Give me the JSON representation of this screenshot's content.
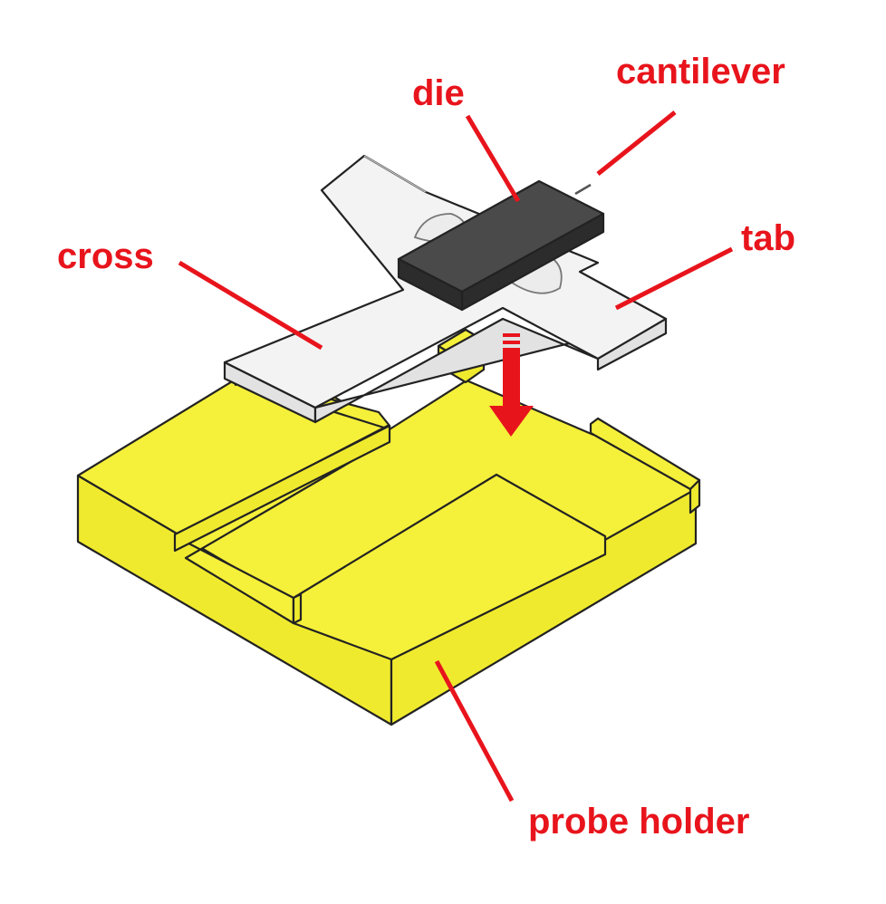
{
  "labels": {
    "cantilever": "cantilever",
    "die": "die",
    "tab": "tab",
    "cross": "cross",
    "probe_holder": "probe holder"
  },
  "colors": {
    "annotation": "#e8141c",
    "holder_top": "#f5f03a",
    "holder_side": "#f0ea2e",
    "cross_fill": "#f3f3f3",
    "die_top": "#4a4a4a",
    "die_side": "#2c2c2c"
  },
  "icons": {
    "assembly_arrow": "down-arrow-icon"
  }
}
